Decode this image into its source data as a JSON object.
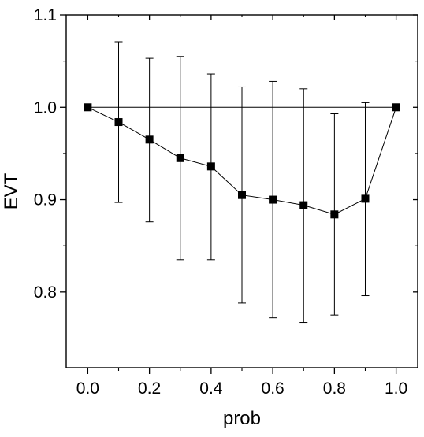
{
  "chart_data": {
    "type": "line",
    "title": "",
    "xlabel": "prob",
    "ylabel": "EVT",
    "xlim": [
      -0.07,
      1.07
    ],
    "ylim": [
      0.718,
      1.1
    ],
    "xticks": [
      0.0,
      0.2,
      0.4,
      0.6,
      0.8,
      1.0
    ],
    "xtick_labels": [
      "0.0",
      "0.2",
      "0.4",
      "0.6",
      "0.8",
      "1.0"
    ],
    "yticks": [
      0.8,
      0.9,
      1.0,
      1.1
    ],
    "ytick_labels": [
      "0.8",
      "0.9",
      "1.0",
      "1.1"
    ],
    "grid": false,
    "legend": "none",
    "marker": "square",
    "reference_line": {
      "y": 1.0,
      "x_from": 0.0,
      "x_to": 1.0
    },
    "series": [
      {
        "x": [
          0.0,
          0.1,
          0.2,
          0.3,
          0.4,
          0.5,
          0.6,
          0.7,
          0.8,
          0.9,
          1.0
        ],
        "y": [
          1.0,
          0.984,
          0.965,
          0.945,
          0.936,
          0.905,
          0.9,
          0.894,
          0.884,
          0.901,
          1.0
        ],
        "err_low": [
          null,
          0.897,
          0.876,
          0.835,
          0.835,
          0.788,
          0.772,
          0.767,
          0.775,
          0.796,
          null
        ],
        "err_high": [
          null,
          1.071,
          1.053,
          1.055,
          1.036,
          1.022,
          1.028,
          1.02,
          0.993,
          1.005,
          null
        ]
      }
    ],
    "colors": {
      "line": "#000000",
      "marker": "#000000",
      "background": "#ffffff"
    }
  }
}
